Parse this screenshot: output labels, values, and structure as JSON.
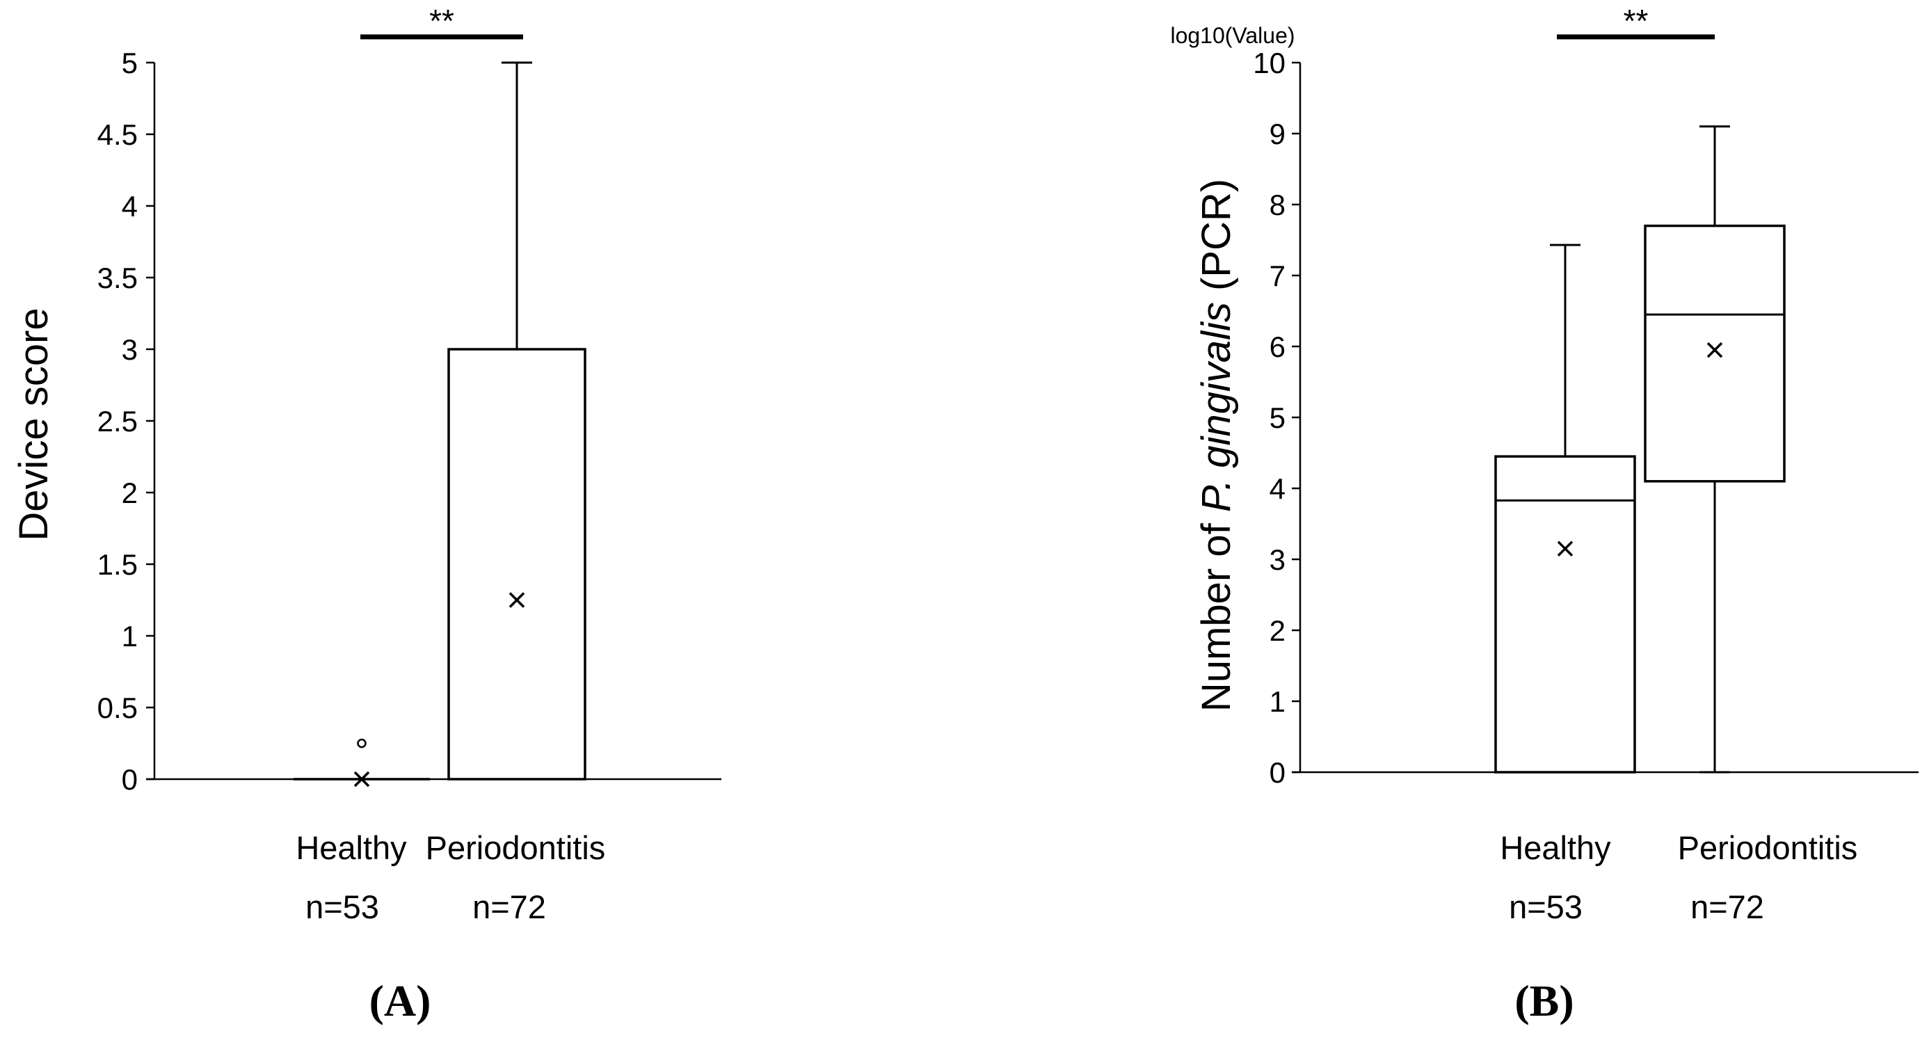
{
  "chart_data": [
    {
      "type": "box",
      "panel_label": "(A)",
      "ylabel": "Device score",
      "ylabel_parts": [
        {
          "text": "Device score",
          "italic": false
        }
      ],
      "unit_label": "",
      "ylim": [
        0,
        5
      ],
      "yticks": [
        0,
        0.5,
        1,
        1.5,
        2,
        2.5,
        3,
        3.5,
        4,
        4.5,
        5
      ],
      "significance": "**",
      "categories": [
        "Healthy",
        "Periodontitis"
      ],
      "n_labels": [
        "n=53",
        "n=72"
      ],
      "series": [
        {
          "whisker_low": 0,
          "q1": 0,
          "median": 0,
          "q3": 0,
          "whisker_high": 0,
          "mean": 0,
          "outliers": [
            0.25
          ]
        },
        {
          "whisker_low": 0,
          "q1": 0,
          "median": 0,
          "q3": 3,
          "whisker_high": 5,
          "mean": 1.25,
          "outliers": []
        }
      ]
    },
    {
      "type": "box",
      "panel_label": "(B)",
      "ylabel": "Number of P. gingivalis (PCR)",
      "ylabel_parts": [
        {
          "text": "Number of ",
          "italic": false
        },
        {
          "text": "P. gingivalis",
          "italic": true
        },
        {
          "text": " (PCR)",
          "italic": false
        }
      ],
      "unit_label": "log10(Value)",
      "ylim": [
        0,
        10
      ],
      "yticks": [
        0,
        1,
        2,
        3,
        4,
        5,
        6,
        7,
        8,
        9,
        10
      ],
      "significance": "**",
      "categories": [
        "Healthy",
        "Periodontitis"
      ],
      "n_labels": [
        "n=53",
        "n=72"
      ],
      "series": [
        {
          "whisker_low": 0,
          "q1": 0,
          "median": 3.83,
          "q3": 4.45,
          "whisker_high": 7.43,
          "mean": 3.15,
          "outliers": []
        },
        {
          "whisker_low": 0,
          "q1": 4.1,
          "median": 6.45,
          "q3": 7.7,
          "whisker_high": 9.1,
          "mean": 5.95,
          "outliers": []
        }
      ]
    }
  ]
}
